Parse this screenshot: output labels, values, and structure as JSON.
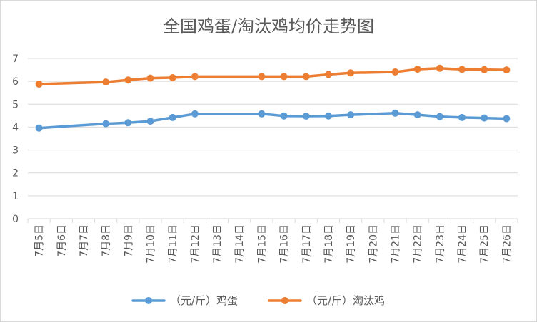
{
  "chart_data": {
    "type": "line",
    "title": "全国鸡蛋/淘汰鸡均价走势图",
    "categories": [
      "7月5日",
      "7月6日",
      "7月7日",
      "7月8日",
      "7月9日",
      "7月10日",
      "7月11日",
      "7月12日",
      "7月13日",
      "7月14日",
      "7月15日",
      "7月16日",
      "7月17日",
      "7月18日",
      "7月19日",
      "7月20日",
      "7月21日",
      "7月22日",
      "7月23日",
      "7月24日",
      "7月25日",
      "7月26日"
    ],
    "ylim": [
      0,
      7
    ],
    "yticks": [
      "0",
      "1",
      "2",
      "3",
      "4",
      "5",
      "6",
      "7"
    ],
    "grid": "horizontal",
    "legend_position": "bottom",
    "series": [
      {
        "name": "（元/斤）鸡蛋",
        "color": "#5b9bd5",
        "values": [
          3.96,
          null,
          null,
          4.15,
          4.19,
          4.26,
          4.42,
          4.58,
          null,
          null,
          4.58,
          4.49,
          4.48,
          4.49,
          4.54,
          null,
          4.61,
          4.54,
          4.46,
          4.42,
          4.4,
          4.37
        ]
      },
      {
        "name": "（元/斤）淘汰鸡",
        "color": "#ed7d31",
        "values": [
          5.88,
          null,
          null,
          5.97,
          6.06,
          6.14,
          6.16,
          6.21,
          null,
          null,
          6.21,
          6.21,
          6.21,
          6.3,
          6.37,
          null,
          6.41,
          6.53,
          6.57,
          6.52,
          6.51,
          6.5
        ]
      }
    ]
  }
}
